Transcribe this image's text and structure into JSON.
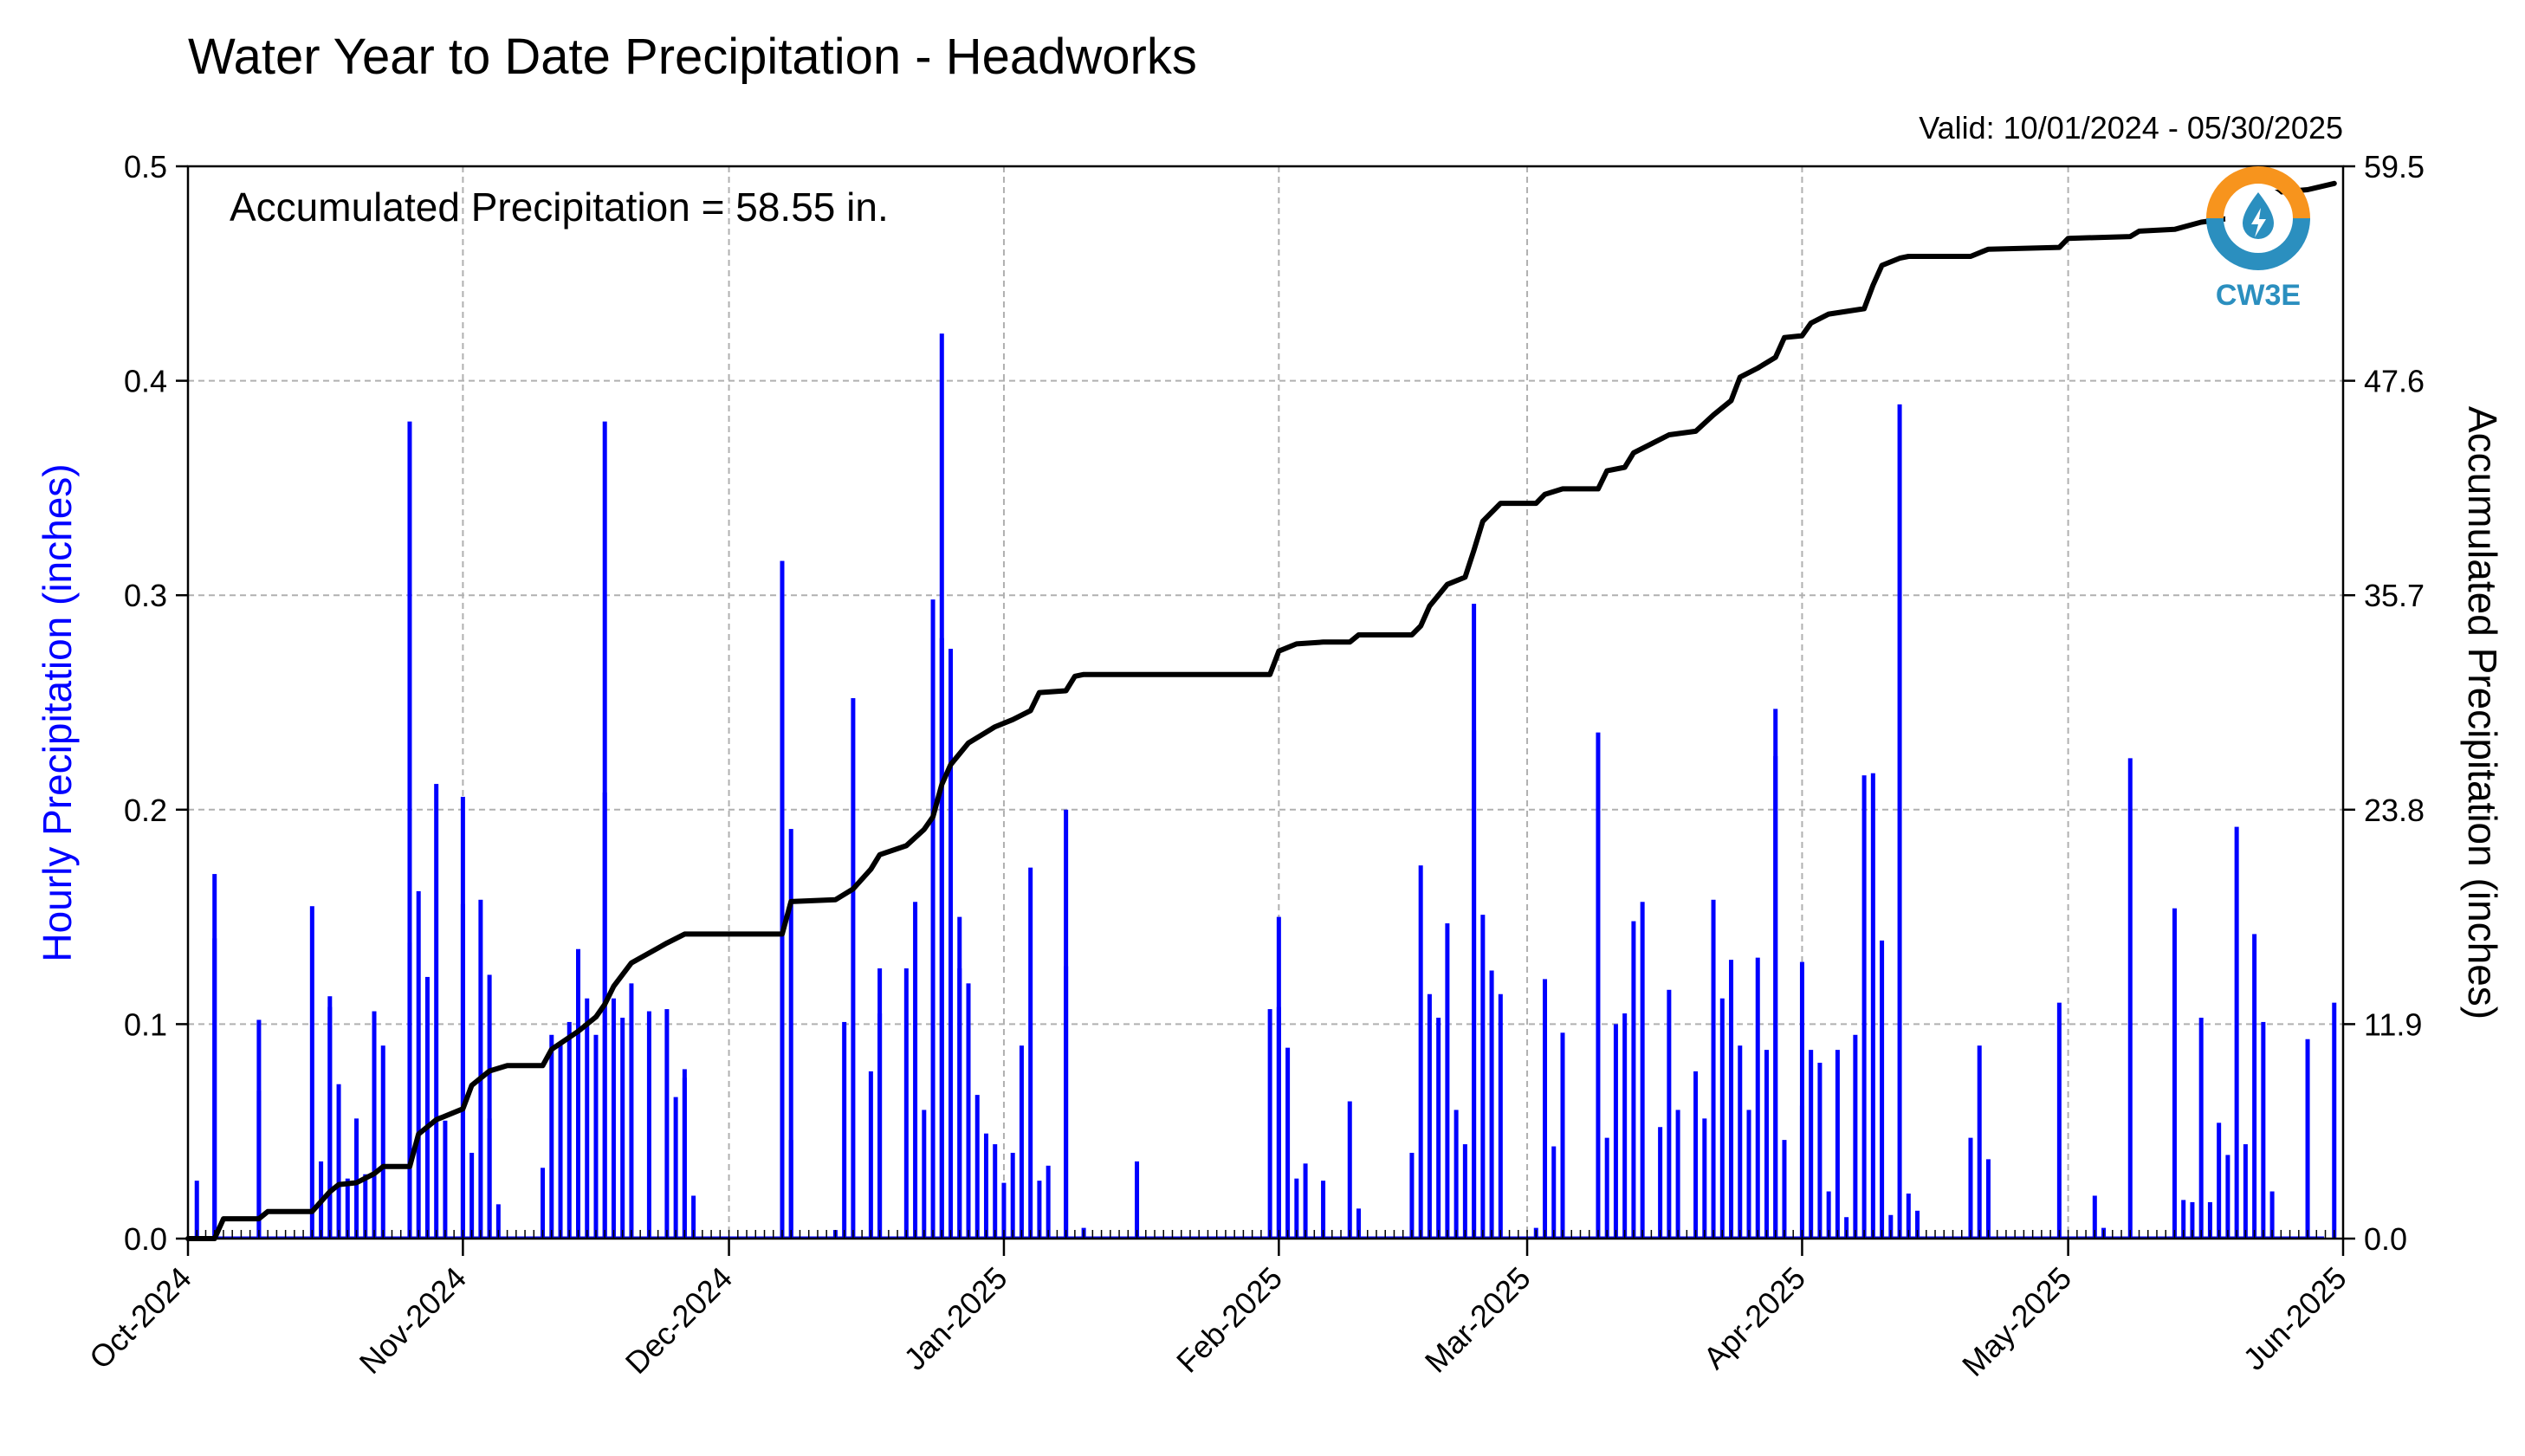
{
  "chart_data": {
    "type": "bar",
    "title": "Water Year to Date Precipitation - Headworks",
    "valid": "Valid: 10/01/2024 - 05/30/2025",
    "annotation": "Accumulated Precipitation = 58.55 in.",
    "ylabel": "Hourly Precipitation (inches)",
    "y2label": "Accumulated Precipitation (inches)",
    "ylim": [
      0,
      0.5
    ],
    "y2lim": [
      0,
      59.5
    ],
    "xlim": [
      "2024-10-01",
      "2025-06-01"
    ],
    "grid": true,
    "yticks": [
      "0.0",
      "0.1",
      "0.2",
      "0.3",
      "0.4",
      "0.5"
    ],
    "y2ticks": [
      "0.0",
      "11.9",
      "23.8",
      "35.7",
      "47.6",
      "59.5"
    ],
    "xticks": [
      {
        "date": "2024-10-01",
        "label": "Oct-2024"
      },
      {
        "date": "2024-11-01",
        "label": "Nov-2024"
      },
      {
        "date": "2024-12-01",
        "label": "Dec-2024"
      },
      {
        "date": "2025-01-01",
        "label": "Jan-2025"
      },
      {
        "date": "2025-02-01",
        "label": "Feb-2025"
      },
      {
        "date": "2025-03-01",
        "label": "Mar-2025"
      },
      {
        "date": "2025-04-01",
        "label": "Apr-2025"
      },
      {
        "date": "2025-05-01",
        "label": "May-2025"
      },
      {
        "date": "2025-06-01",
        "label": "Jun-2025"
      }
    ],
    "hourly_color": "#0000ff",
    "accum_color": "#000000",
    "series": [
      {
        "name": "Hourly Precipitation",
        "points": [
          [
            "2024-10-02",
            0.027
          ],
          [
            "2024-10-04",
            0.14
          ],
          [
            "2024-10-04",
            0.17
          ],
          [
            "2024-10-09",
            0.069
          ],
          [
            "2024-10-09",
            0.102
          ],
          [
            "2024-10-15",
            0.155
          ],
          [
            "2024-10-16",
            0.036
          ],
          [
            "2024-10-17",
            0.108
          ],
          [
            "2024-10-17",
            0.113
          ],
          [
            "2024-10-18",
            0.072
          ],
          [
            "2024-10-19",
            0.028
          ],
          [
            "2024-10-20",
            0.056
          ],
          [
            "2024-10-21",
            0.03
          ],
          [
            "2024-10-22",
            0.106
          ],
          [
            "2024-10-23",
            0.09
          ],
          [
            "2024-10-26",
            0.138
          ],
          [
            "2024-10-26",
            0.381
          ],
          [
            "2024-10-27",
            0.162
          ],
          [
            "2024-10-28",
            0.122
          ],
          [
            "2024-10-29",
            0.212
          ],
          [
            "2024-10-30",
            0.055
          ],
          [
            "2024-11-01",
            0.206
          ],
          [
            "2024-11-01",
            0.156
          ],
          [
            "2024-11-02",
            0.04
          ],
          [
            "2024-11-03",
            0.158
          ],
          [
            "2024-11-04",
            0.056
          ],
          [
            "2024-11-04",
            0.123
          ],
          [
            "2024-11-05",
            0.016
          ],
          [
            "2024-11-10",
            0.033
          ],
          [
            "2024-11-11",
            0.095
          ],
          [
            "2024-11-12",
            0.091
          ],
          [
            "2024-11-13",
            0.101
          ],
          [
            "2024-11-14",
            0.135
          ],
          [
            "2024-11-15",
            0.112
          ],
          [
            "2024-11-16",
            0.095
          ],
          [
            "2024-11-17",
            0.381
          ],
          [
            "2024-11-17",
            0.208
          ],
          [
            "2024-11-18",
            0.112
          ],
          [
            "2024-11-19",
            0.103
          ],
          [
            "2024-11-20",
            0.119
          ],
          [
            "2024-11-22",
            0.106
          ],
          [
            "2024-11-24",
            0.107
          ],
          [
            "2024-11-25",
            0.066
          ],
          [
            "2024-11-26",
            0.075
          ],
          [
            "2024-11-26",
            0.079
          ],
          [
            "2024-11-27",
            0.02
          ],
          [
            "2024-12-07",
            0.316
          ],
          [
            "2024-12-08",
            0.191
          ],
          [
            "2024-12-08",
            0.046
          ],
          [
            "2024-12-13",
            0.004
          ],
          [
            "2024-12-14",
            0.101
          ],
          [
            "2024-12-15",
            0.252
          ],
          [
            "2024-12-17",
            0.078
          ],
          [
            "2024-12-18",
            0.105
          ],
          [
            "2024-12-18",
            0.126
          ],
          [
            "2024-12-21",
            0.126
          ],
          [
            "2024-12-22",
            0.157
          ],
          [
            "2024-12-23",
            0.06
          ],
          [
            "2024-12-24",
            0.298
          ],
          [
            "2024-12-25",
            0.28
          ],
          [
            "2024-12-25",
            0.422
          ],
          [
            "2024-12-26",
            0.275
          ],
          [
            "2024-12-27",
            0.126
          ],
          [
            "2024-12-27",
            0.15
          ],
          [
            "2024-12-28",
            0.119
          ],
          [
            "2024-12-29",
            0.067
          ],
          [
            "2024-12-30",
            0.049
          ],
          [
            "2024-12-31",
            0.044
          ],
          [
            "2025-01-01",
            0.026
          ],
          [
            "2025-01-02",
            0.04
          ],
          [
            "2025-01-03",
            0.09
          ],
          [
            "2025-01-04",
            0.173
          ],
          [
            "2025-01-05",
            0.027
          ],
          [
            "2025-01-06",
            0.034
          ],
          [
            "2025-01-08",
            0.2
          ],
          [
            "2025-01-08",
            0.127
          ],
          [
            "2025-01-10",
            0.005
          ],
          [
            "2025-01-16",
            0.036
          ],
          [
            "2025-01-31",
            0.107
          ],
          [
            "2025-02-01",
            0.15
          ],
          [
            "2025-02-01",
            0.108
          ],
          [
            "2025-02-02",
            0.089
          ],
          [
            "2025-02-03",
            0.028
          ],
          [
            "2025-02-04",
            0.035
          ],
          [
            "2025-02-06",
            0.027
          ],
          [
            "2025-02-09",
            0.064
          ],
          [
            "2025-02-10",
            0.014
          ],
          [
            "2025-02-16",
            0.04
          ],
          [
            "2025-02-17",
            0.174
          ],
          [
            "2025-02-18",
            0.114
          ],
          [
            "2025-02-19",
            0.103
          ],
          [
            "2025-02-20",
            0.147
          ],
          [
            "2025-02-21",
            0.06
          ],
          [
            "2025-02-22",
            0.044
          ],
          [
            "2025-02-23",
            0.296
          ],
          [
            "2025-02-23",
            0.237
          ],
          [
            "2025-02-24",
            0.151
          ],
          [
            "2025-02-25",
            0.125
          ],
          [
            "2025-02-26",
            0.114
          ],
          [
            "2025-03-02",
            0.005
          ],
          [
            "2025-03-03",
            0.121
          ],
          [
            "2025-03-04",
            0.043
          ],
          [
            "2025-03-05",
            0.096
          ],
          [
            "2025-03-09",
            0.236
          ],
          [
            "2025-03-10",
            0.047
          ],
          [
            "2025-03-11",
            0.1
          ],
          [
            "2025-03-12",
            0.105
          ],
          [
            "2025-03-13",
            0.148
          ],
          [
            "2025-03-14",
            0.157
          ],
          [
            "2025-03-16",
            0.052
          ],
          [
            "2025-03-17",
            0.116
          ],
          [
            "2025-03-18",
            0.06
          ],
          [
            "2025-03-20",
            0.078
          ],
          [
            "2025-03-21",
            0.056
          ],
          [
            "2025-03-22",
            0.158
          ],
          [
            "2025-03-23",
            0.112
          ],
          [
            "2025-03-24",
            0.13
          ],
          [
            "2025-03-25",
            0.09
          ],
          [
            "2025-03-26",
            0.06
          ],
          [
            "2025-03-27",
            0.131
          ],
          [
            "2025-03-28",
            0.088
          ],
          [
            "2025-03-29",
            0.247
          ],
          [
            "2025-03-29",
            0.225
          ],
          [
            "2025-03-30",
            0.046
          ],
          [
            "2025-04-01",
            0.062
          ],
          [
            "2025-04-01",
            0.129
          ],
          [
            "2025-04-02",
            0.088
          ],
          [
            "2025-04-03",
            0.082
          ],
          [
            "2025-04-04",
            0.022
          ],
          [
            "2025-04-05",
            0.088
          ],
          [
            "2025-04-06",
            0.01
          ],
          [
            "2025-04-07",
            0.095
          ],
          [
            "2025-04-08",
            0.216
          ],
          [
            "2025-04-09",
            0.217
          ],
          [
            "2025-04-10",
            0.139
          ],
          [
            "2025-04-11",
            0.011
          ],
          [
            "2025-04-12",
            0.389
          ],
          [
            "2025-04-13",
            0.021
          ],
          [
            "2025-04-14",
            0.013
          ],
          [
            "2025-04-20",
            0.047
          ],
          [
            "2025-04-21",
            0.09
          ],
          [
            "2025-04-22",
            0.037
          ],
          [
            "2025-04-30",
            0.11
          ],
          [
            "2025-05-04",
            0.02
          ],
          [
            "2025-05-05",
            0.005
          ],
          [
            "2025-05-08",
            0.224
          ],
          [
            "2025-05-13",
            0.154
          ],
          [
            "2025-05-14",
            0.018
          ],
          [
            "2025-05-15",
            0.017
          ],
          [
            "2025-05-16",
            0.103
          ],
          [
            "2025-05-17",
            0.017
          ],
          [
            "2025-05-18",
            0.054
          ],
          [
            "2025-05-19",
            0.039
          ],
          [
            "2025-05-20",
            0.192
          ],
          [
            "2025-05-21",
            0.044
          ],
          [
            "2025-05-22",
            0.142
          ],
          [
            "2025-05-23",
            0.101
          ],
          [
            "2025-05-24",
            0.022
          ],
          [
            "2025-05-28",
            0.093
          ],
          [
            "2025-05-31",
            0.11
          ]
        ]
      },
      {
        "name": "Accumulated Precipitation",
        "points": [
          [
            "2024-10-01",
            0.0
          ],
          [
            "2024-10-04",
            0.0
          ],
          [
            "2024-10-05",
            1.1
          ],
          [
            "2024-10-09",
            1.1
          ],
          [
            "2024-10-10",
            1.5
          ],
          [
            "2024-10-15",
            1.5
          ],
          [
            "2024-10-17",
            2.6
          ],
          [
            "2024-10-18",
            3.0
          ],
          [
            "2024-10-20",
            3.1
          ],
          [
            "2024-10-22",
            3.6
          ],
          [
            "2024-10-23",
            4.0
          ],
          [
            "2024-10-26",
            4.0
          ],
          [
            "2024-10-27",
            5.8
          ],
          [
            "2024-10-29",
            6.6
          ],
          [
            "2024-11-01",
            7.2
          ],
          [
            "2024-11-02",
            8.5
          ],
          [
            "2024-11-04",
            9.3
          ],
          [
            "2024-11-06",
            9.6
          ],
          [
            "2024-11-10",
            9.6
          ],
          [
            "2024-11-11",
            10.5
          ],
          [
            "2024-11-14",
            11.5
          ],
          [
            "2024-11-16",
            12.3
          ],
          [
            "2024-11-17",
            13.0
          ],
          [
            "2024-11-18",
            14.0
          ],
          [
            "2024-11-20",
            15.3
          ],
          [
            "2024-11-24",
            16.4
          ],
          [
            "2024-11-26",
            16.9
          ],
          [
            "2024-11-27",
            16.9
          ],
          [
            "2024-12-07",
            16.9
          ],
          [
            "2024-12-08",
            18.7
          ],
          [
            "2024-12-13",
            18.8
          ],
          [
            "2024-12-15",
            19.4
          ],
          [
            "2024-12-17",
            20.5
          ],
          [
            "2024-12-18",
            21.3
          ],
          [
            "2024-12-21",
            21.8
          ],
          [
            "2024-12-23",
            22.7
          ],
          [
            "2024-12-24",
            23.4
          ],
          [
            "2024-12-25",
            25.2
          ],
          [
            "2024-12-26",
            26.3
          ],
          [
            "2024-12-28",
            27.5
          ],
          [
            "2024-12-31",
            28.4
          ],
          [
            "2025-01-02",
            28.8
          ],
          [
            "2025-01-04",
            29.3
          ],
          [
            "2025-01-05",
            30.3
          ],
          [
            "2025-01-08",
            30.4
          ],
          [
            "2025-01-09",
            31.2
          ],
          [
            "2025-01-10",
            31.3
          ],
          [
            "2025-01-16",
            31.3
          ],
          [
            "2025-01-31",
            31.3
          ],
          [
            "2025-02-01",
            32.6
          ],
          [
            "2025-02-03",
            33.0
          ],
          [
            "2025-02-06",
            33.1
          ],
          [
            "2025-02-09",
            33.1
          ],
          [
            "2025-02-10",
            33.5
          ],
          [
            "2025-02-16",
            33.5
          ],
          [
            "2025-02-17",
            34.0
          ],
          [
            "2025-02-18",
            35.1
          ],
          [
            "2025-02-20",
            36.3
          ],
          [
            "2025-02-22",
            36.7
          ],
          [
            "2025-02-23",
            38.2
          ],
          [
            "2025-02-24",
            39.8
          ],
          [
            "2025-02-26",
            40.8
          ],
          [
            "2025-03-02",
            40.8
          ],
          [
            "2025-03-03",
            41.3
          ],
          [
            "2025-03-05",
            41.6
          ],
          [
            "2025-03-09",
            41.6
          ],
          [
            "2025-03-10",
            42.6
          ],
          [
            "2025-03-12",
            42.8
          ],
          [
            "2025-03-13",
            43.6
          ],
          [
            "2025-03-15",
            44.1
          ],
          [
            "2025-03-17",
            44.6
          ],
          [
            "2025-03-20",
            44.8
          ],
          [
            "2025-03-22",
            45.7
          ],
          [
            "2025-03-24",
            46.5
          ],
          [
            "2025-03-25",
            47.8
          ],
          [
            "2025-03-27",
            48.3
          ],
          [
            "2025-03-29",
            48.9
          ],
          [
            "2025-03-30",
            50.0
          ],
          [
            "2025-04-01",
            50.1
          ],
          [
            "2025-04-02",
            50.8
          ],
          [
            "2025-04-04",
            51.3
          ],
          [
            "2025-04-08",
            51.6
          ],
          [
            "2025-04-09",
            52.9
          ],
          [
            "2025-04-10",
            54.0
          ],
          [
            "2025-04-12",
            54.4
          ],
          [
            "2025-04-13",
            54.5
          ],
          [
            "2025-04-20",
            54.5
          ],
          [
            "2025-04-22",
            54.9
          ],
          [
            "2025-04-30",
            55.0
          ],
          [
            "2025-05-01",
            55.5
          ],
          [
            "2025-05-08",
            55.6
          ],
          [
            "2025-05-09",
            55.9
          ],
          [
            "2025-05-13",
            56.0
          ],
          [
            "2025-05-16",
            56.4
          ],
          [
            "2025-05-19",
            56.6
          ],
          [
            "2025-05-21",
            57.4
          ],
          [
            "2025-05-23",
            58.0
          ],
          [
            "2025-05-28",
            58.2
          ],
          [
            "2025-05-31",
            58.55
          ]
        ]
      }
    ]
  },
  "logo": {
    "text": "CW3E",
    "ring_top_color": "#f7941d",
    "ring_bottom_color": "#2b8fbf"
  }
}
